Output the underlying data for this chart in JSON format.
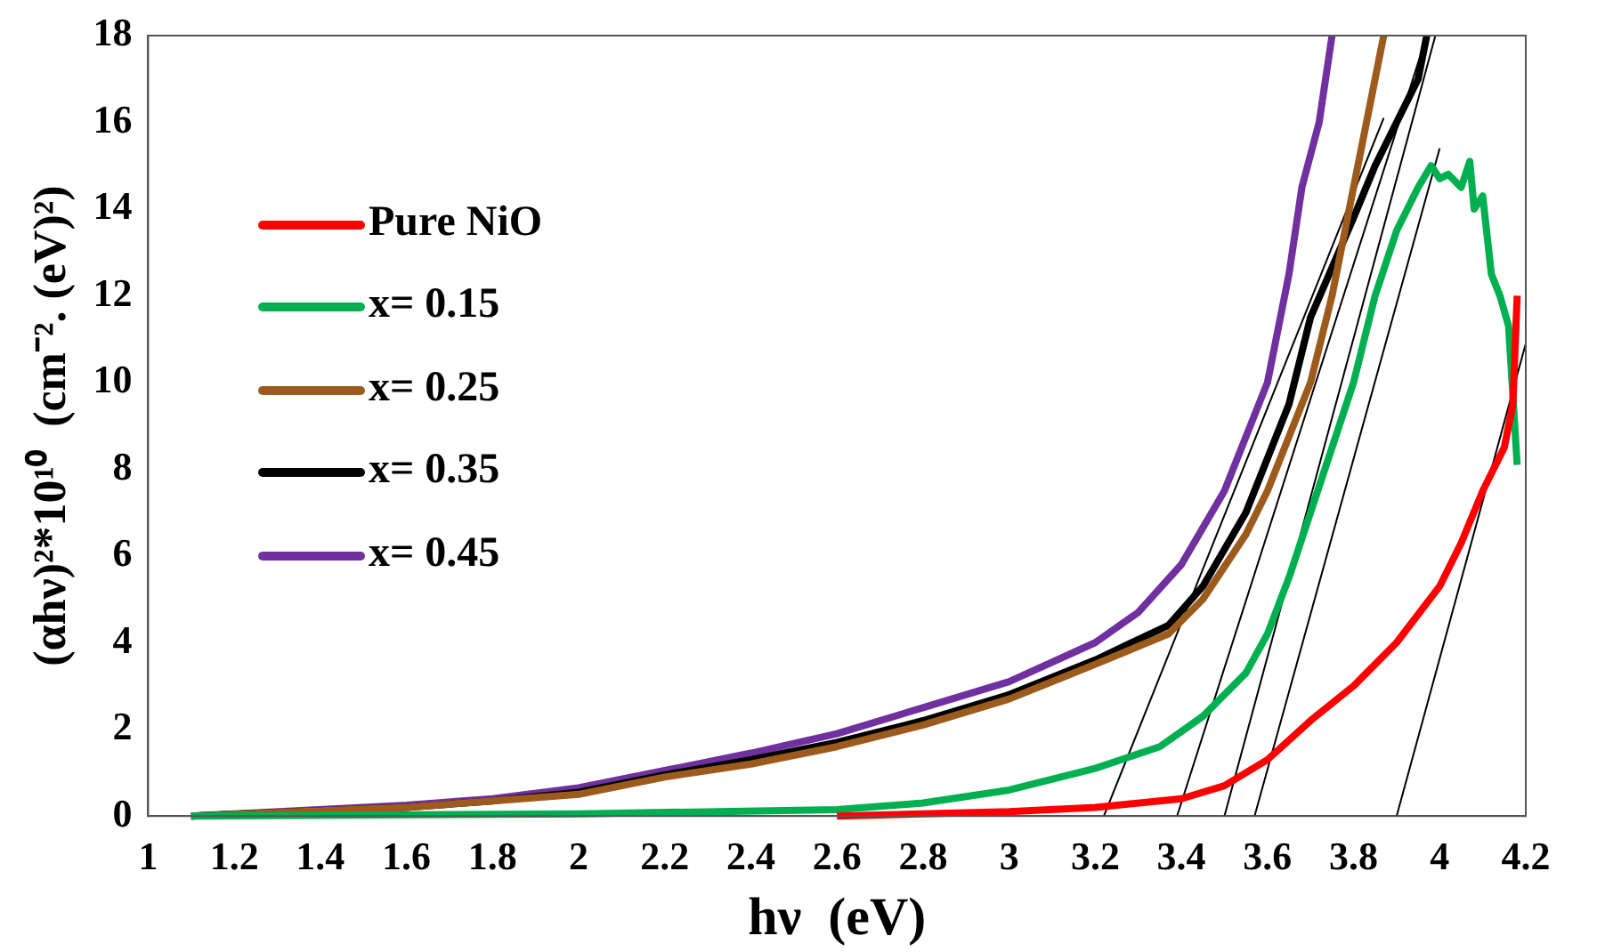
{
  "chart_data": {
    "type": "line",
    "xlabel": "hν  (eV)",
    "ylabel": "(αhν)²*10¹⁰  (cm⁻². (eV)²)",
    "xlim": [
      1,
      4.2
    ],
    "ylim": [
      0,
      18
    ],
    "xticks": [
      1,
      1.2,
      1.4,
      1.6,
      1.8,
      2,
      2.2,
      2.4,
      2.6,
      2.8,
      3,
      3.2,
      3.4,
      3.6,
      3.8,
      4,
      4.2
    ],
    "yticks": [
      0,
      2,
      4,
      6,
      8,
      10,
      12,
      14,
      16,
      18
    ],
    "grid": false,
    "legend": "left",
    "marker": "none",
    "line_style": "solid",
    "series": [
      {
        "name": "Pure NiO",
        "color": "#ff0000",
        "x": [
          2.6,
          3.0,
          3.2,
          3.4,
          3.5,
          3.6,
          3.7,
          3.8,
          3.9,
          4.0,
          4.05,
          4.1,
          4.15,
          4.17,
          4.18
        ],
        "values": [
          0,
          0.1,
          0.2,
          0.4,
          0.7,
          1.3,
          2.2,
          3.0,
          4.0,
          5.3,
          6.3,
          7.5,
          8.5,
          9.5,
          12.0
        ]
      },
      {
        "name": "x= 0.15",
        "color": "#00b050",
        "x": [
          1.1,
          2.0,
          2.6,
          2.8,
          3.0,
          3.2,
          3.35,
          3.45,
          3.55,
          3.6,
          3.65,
          3.7,
          3.75,
          3.8,
          3.85,
          3.9,
          3.95,
          3.98,
          4.0,
          4.02,
          4.05,
          4.07,
          4.08,
          4.1,
          4.12,
          4.14,
          4.16,
          4.18
        ],
        "values": [
          0,
          0.05,
          0.15,
          0.3,
          0.6,
          1.1,
          1.6,
          2.3,
          3.3,
          4.2,
          5.5,
          7.0,
          8.5,
          10.0,
          12.0,
          13.5,
          14.5,
          15.0,
          14.7,
          14.8,
          14.5,
          15.1,
          14.0,
          14.3,
          12.5,
          12.0,
          11.3,
          8.1
        ]
      },
      {
        "name": "x= 0.25",
        "color": "#9c5b1c",
        "x": [
          1.1,
          1.6,
          1.8,
          2.0,
          2.2,
          2.4,
          2.6,
          2.8,
          3.0,
          3.2,
          3.37,
          3.45,
          3.55,
          3.6,
          3.7,
          3.75,
          3.8,
          3.84,
          3.87
        ],
        "values": [
          0,
          0.2,
          0.35,
          0.5,
          0.9,
          1.2,
          1.6,
          2.1,
          2.7,
          3.5,
          4.2,
          5.0,
          6.5,
          7.5,
          10.0,
          12.0,
          14.5,
          16.5,
          18.0
        ]
      },
      {
        "name": "x= 0.35",
        "color": "#000000",
        "x": [
          1.1,
          1.6,
          1.8,
          2.0,
          2.2,
          2.4,
          2.6,
          2.8,
          3.0,
          3.2,
          3.37,
          3.45,
          3.55,
          3.65,
          3.7,
          3.8,
          3.85,
          3.9,
          3.95,
          3.97
        ],
        "values": [
          0,
          0.2,
          0.35,
          0.55,
          0.95,
          1.3,
          1.7,
          2.2,
          2.8,
          3.6,
          4.4,
          5.3,
          7.0,
          9.5,
          11.5,
          13.8,
          15.0,
          16.0,
          17.0,
          18.0
        ]
      },
      {
        "name": "x= 0.45",
        "color": "#7030a0",
        "x": [
          1.1,
          1.6,
          1.8,
          2.0,
          2.2,
          2.4,
          2.6,
          2.8,
          3.0,
          3.2,
          3.3,
          3.4,
          3.5,
          3.6,
          3.65,
          3.68,
          3.72,
          3.75
        ],
        "values": [
          0,
          0.25,
          0.4,
          0.65,
          1.05,
          1.45,
          1.9,
          2.5,
          3.1,
          4.0,
          4.7,
          5.8,
          7.5,
          10.0,
          12.5,
          14.5,
          16.0,
          18.0
        ]
      },
      {
        "type": "line",
        "color": "#000000",
        "x": [
          3.22,
          3.87
        ],
        "values": [
          0,
          16.1
        ]
      },
      {
        "type": "line",
        "color": "#000000",
        "x": [
          3.39,
          3.97
        ],
        "values": [
          0,
          18
        ]
      },
      {
        "type": "line",
        "color": "#000000",
        "x": [
          3.5,
          3.99
        ],
        "values": [
          0,
          18
        ]
      },
      {
        "type": "line",
        "color": "#000000",
        "x": [
          3.57,
          4.0
        ],
        "values": [
          0,
          15.4
        ]
      },
      {
        "type": "line",
        "color": "#000000",
        "x": [
          3.9,
          4.2
        ],
        "values": [
          0,
          10.9
        ]
      }
    ]
  }
}
